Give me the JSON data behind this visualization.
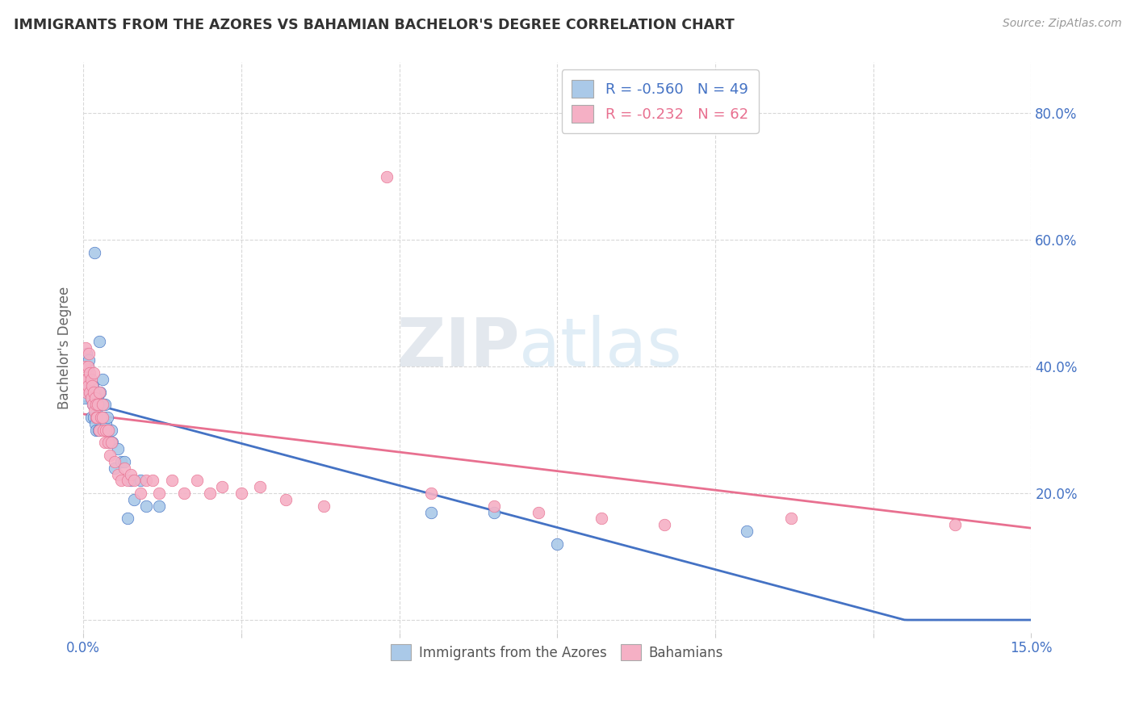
{
  "title": "IMMIGRANTS FROM THE AZORES VS BAHAMIAN BACHELOR'S DEGREE CORRELATION CHART",
  "source": "Source: ZipAtlas.com",
  "ylabel": "Bachelor's Degree",
  "legend_line1": "R = -0.560   N = 49",
  "legend_line2": "R = -0.232   N = 62",
  "xmin": 0.0,
  "xmax": 0.15,
  "ymin": -0.02,
  "ymax": 0.88,
  "azores_color": "#aac9e8",
  "bahamian_color": "#f5b0c5",
  "azores_line_color": "#4472c4",
  "bahamian_line_color": "#e87090",
  "background_color": "#ffffff",
  "watermark_zip": "ZIP",
  "watermark_atlas": "atlas",
  "azores_scatter_x": [
    0.0002,
    0.0005,
    0.0006,
    0.0007,
    0.0008,
    0.0009,
    0.001,
    0.001,
    0.0012,
    0.0013,
    0.0014,
    0.0015,
    0.0015,
    0.0016,
    0.0017,
    0.0018,
    0.0019,
    0.002,
    0.002,
    0.0022,
    0.0023,
    0.0024,
    0.0025,
    0.0026,
    0.0027,
    0.003,
    0.003,
    0.0032,
    0.0034,
    0.0036,
    0.0038,
    0.004,
    0.0042,
    0.0044,
    0.0046,
    0.005,
    0.0055,
    0.006,
    0.0065,
    0.007,
    0.0075,
    0.008,
    0.009,
    0.01,
    0.012,
    0.055,
    0.065,
    0.075,
    0.105
  ],
  "azores_scatter_y": [
    0.35,
    0.42,
    0.38,
    0.4,
    0.37,
    0.41,
    0.36,
    0.38,
    0.35,
    0.32,
    0.36,
    0.34,
    0.37,
    0.32,
    0.34,
    0.58,
    0.31,
    0.3,
    0.33,
    0.32,
    0.35,
    0.3,
    0.34,
    0.44,
    0.36,
    0.32,
    0.38,
    0.34,
    0.34,
    0.31,
    0.32,
    0.3,
    0.28,
    0.3,
    0.28,
    0.24,
    0.27,
    0.25,
    0.25,
    0.16,
    0.22,
    0.19,
    0.22,
    0.18,
    0.18,
    0.17,
    0.17,
    0.12,
    0.14
  ],
  "bahamian_scatter_x": [
    0.0002,
    0.0003,
    0.0004,
    0.0005,
    0.0006,
    0.0007,
    0.0008,
    0.0009,
    0.001,
    0.001,
    0.0012,
    0.0013,
    0.0014,
    0.0015,
    0.0016,
    0.0017,
    0.0018,
    0.0019,
    0.002,
    0.002,
    0.0022,
    0.0023,
    0.0025,
    0.0026,
    0.0028,
    0.003,
    0.003,
    0.0032,
    0.0034,
    0.0036,
    0.004,
    0.004,
    0.0042,
    0.0045,
    0.005,
    0.0055,
    0.006,
    0.0065,
    0.007,
    0.0075,
    0.008,
    0.009,
    0.01,
    0.011,
    0.012,
    0.014,
    0.016,
    0.018,
    0.02,
    0.022,
    0.025,
    0.028,
    0.032,
    0.038,
    0.048,
    0.055,
    0.065,
    0.072,
    0.082,
    0.092,
    0.112,
    0.138
  ],
  "bahamian_scatter_y": [
    0.4,
    0.38,
    0.43,
    0.36,
    0.38,
    0.4,
    0.37,
    0.42,
    0.39,
    0.36,
    0.38,
    0.35,
    0.37,
    0.34,
    0.36,
    0.39,
    0.33,
    0.35,
    0.32,
    0.34,
    0.32,
    0.34,
    0.36,
    0.3,
    0.32,
    0.32,
    0.34,
    0.3,
    0.28,
    0.3,
    0.28,
    0.3,
    0.26,
    0.28,
    0.25,
    0.23,
    0.22,
    0.24,
    0.22,
    0.23,
    0.22,
    0.2,
    0.22,
    0.22,
    0.2,
    0.22,
    0.2,
    0.22,
    0.2,
    0.21,
    0.2,
    0.21,
    0.19,
    0.18,
    0.7,
    0.2,
    0.18,
    0.17,
    0.16,
    0.15,
    0.16,
    0.15
  ],
  "ytick_vals": [
    0.0,
    0.2,
    0.4,
    0.6,
    0.8
  ],
  "ytick_labels": [
    "",
    "20.0%",
    "40.0%",
    "60.0%",
    "80.0%"
  ]
}
